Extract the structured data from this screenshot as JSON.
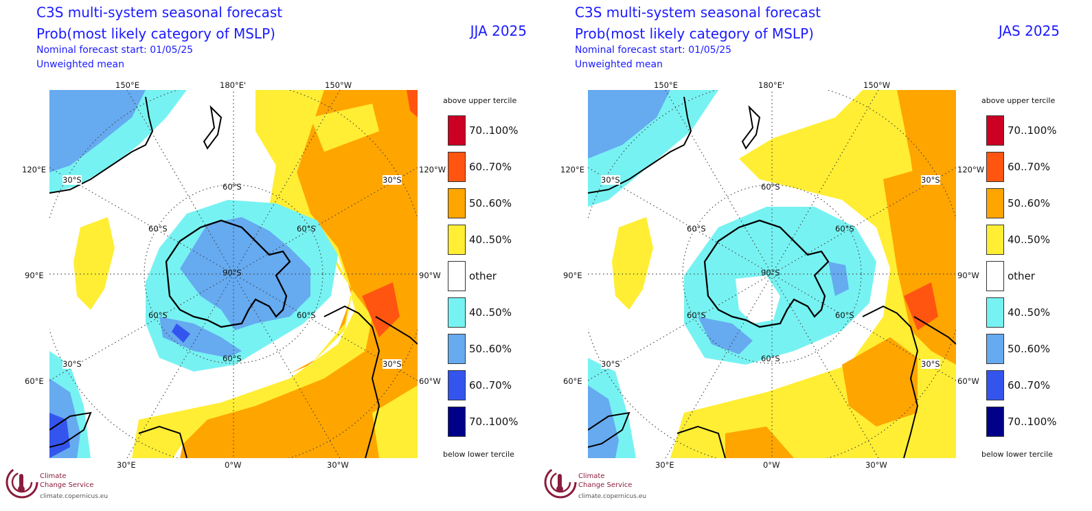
{
  "palette": {
    "above_70_100": "#cc0022",
    "above_60_70": "#ff5511",
    "above_50_60": "#ffa500",
    "above_40_50": "#ffee33",
    "other": "#ffffff",
    "below_40_50": "#77f2f2",
    "below_50_60": "#66aaf0",
    "below_60_70": "#3355ee",
    "below_70_100": "#000088",
    "title_blue": "#1a1aff",
    "logo_red": "#8a1c3c"
  },
  "panels": [
    {
      "title_line1": "C3S multi-system seasonal forecast",
      "title_line2": "Prob(most likely category of MSLP)",
      "season": "JJA 2025",
      "forecast_start": "Nominal forecast start: 01/05/25",
      "method": "Unweighted mean"
    },
    {
      "title_line1": "C3S multi-system seasonal forecast",
      "title_line2": "Prob(most likely category of MSLP)",
      "season": "JAS 2025",
      "forecast_start": "Nominal forecast start: 01/05/25",
      "method": "Unweighted mean"
    }
  ],
  "map_labels": {
    "lon_150e": "150°E",
    "lon_180": "180°E'",
    "lon_150w": "150°W",
    "lon_120e": "120°E",
    "lon_120w": "120°W",
    "lon_90e": "90°E",
    "lon_90w": "90°W",
    "lon_60e": "60°E",
    "lon_60w": "60°W",
    "lon_30e": "30°E",
    "lon_0w": "0°W",
    "lon_30w": "30°W",
    "lat_30s": "30°S",
    "lat_60s": "60°S",
    "lat_90s": "90°S"
  },
  "legend": {
    "above_label": "above upper tercile",
    "below_label": "below lower tercile",
    "items": [
      {
        "label": "70..100%",
        "color": "#cc0022"
      },
      {
        "label": "60..70%",
        "color": "#ff5511"
      },
      {
        "label": "50..60%",
        "color": "#ffa500"
      },
      {
        "label": "40..50%",
        "color": "#ffee33"
      },
      {
        "label": "other",
        "color": "#ffffff"
      },
      {
        "label": "40..50%",
        "color": "#77f2f2"
      },
      {
        "label": "50..60%",
        "color": "#66aaf0"
      },
      {
        "label": "60..70%",
        "color": "#3355ee"
      },
      {
        "label": "70..100%",
        "color": "#000088"
      }
    ]
  },
  "logo": {
    "line1": "Climate",
    "line2": "Change Service",
    "url": "climate.copernicus.eu"
  }
}
